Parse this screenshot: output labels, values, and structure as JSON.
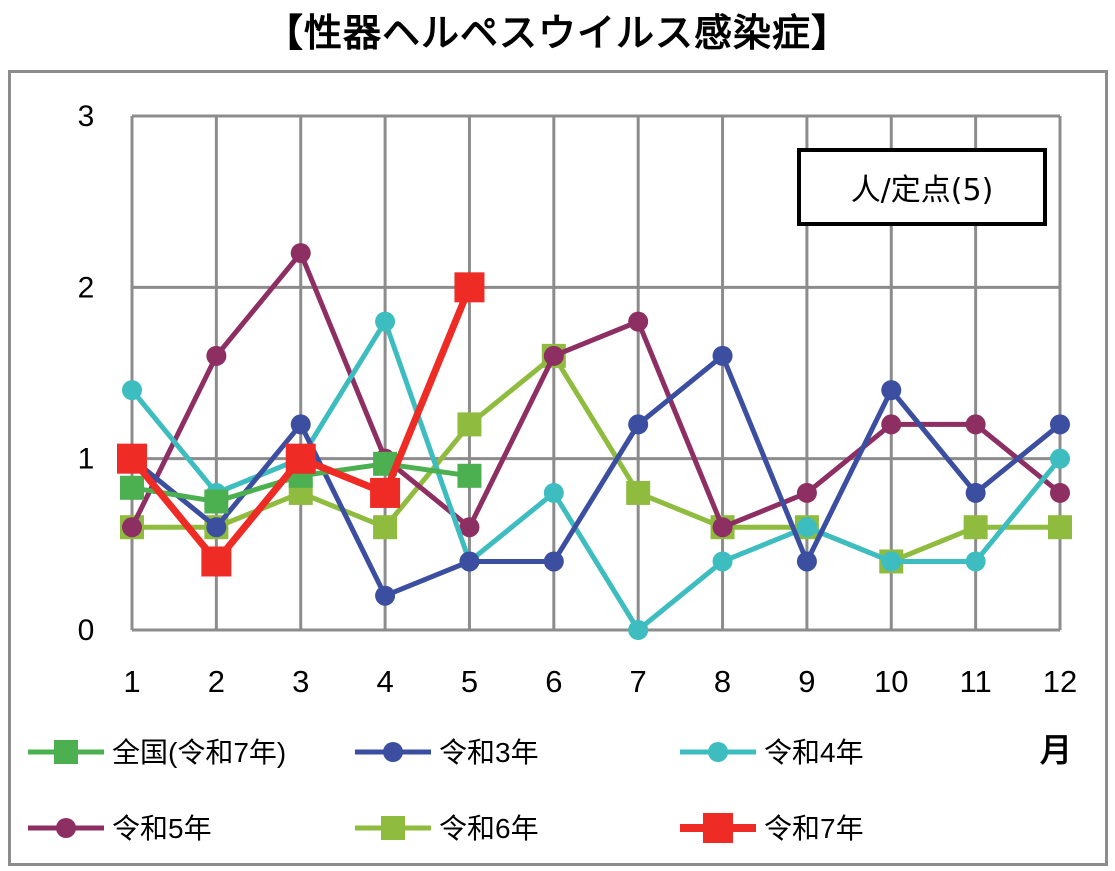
{
  "chart_data": {
    "type": "line",
    "title": "【性器ヘルペスウイルス感染症】",
    "unit_label": "人/定点(5)",
    "x_unit_label": "月",
    "categories": [
      "1",
      "2",
      "3",
      "4",
      "5",
      "6",
      "7",
      "8",
      "9",
      "10",
      "11",
      "12"
    ],
    "ylim": [
      0,
      3
    ],
    "yticks": [
      "0",
      "1",
      "2",
      "3"
    ],
    "grid": true,
    "legend_position": "bottom",
    "series": [
      {
        "name": "全国(令和7年)",
        "color": "#4caf50",
        "marker": "square",
        "values": [
          0.83,
          0.75,
          0.9,
          0.97,
          0.9,
          null,
          null,
          null,
          null,
          null,
          null,
          null
        ]
      },
      {
        "name": "令和3年",
        "color": "#3b4ea0",
        "marker": "circle",
        "values": [
          1.0,
          0.6,
          1.2,
          0.2,
          0.4,
          0.4,
          1.2,
          1.6,
          0.4,
          1.4,
          0.8,
          1.2
        ]
      },
      {
        "name": "令和4年",
        "color": "#3dbdbf",
        "marker": "circle",
        "values": [
          1.4,
          0.8,
          1.0,
          1.8,
          0.4,
          0.8,
          0.0,
          0.4,
          0.6,
          0.4,
          0.4,
          1.0
        ]
      },
      {
        "name": "令和5年",
        "color": "#8e2f63",
        "marker": "circle",
        "values": [
          0.6,
          1.6,
          2.2,
          1.0,
          0.6,
          1.6,
          1.8,
          0.6,
          0.8,
          1.2,
          1.2,
          0.8
        ]
      },
      {
        "name": "令和6年",
        "color": "#8fbc3f",
        "marker": "square",
        "values": [
          0.6,
          0.6,
          0.8,
          0.6,
          1.2,
          1.6,
          0.8,
          0.6,
          0.6,
          0.4,
          0.6,
          0.6
        ]
      },
      {
        "name": "令和7年",
        "color": "#ee2b24",
        "marker": "square-large",
        "values": [
          1.0,
          0.4,
          1.0,
          0.8,
          2.0,
          null,
          null,
          null,
          null,
          null,
          null,
          null
        ]
      }
    ]
  }
}
